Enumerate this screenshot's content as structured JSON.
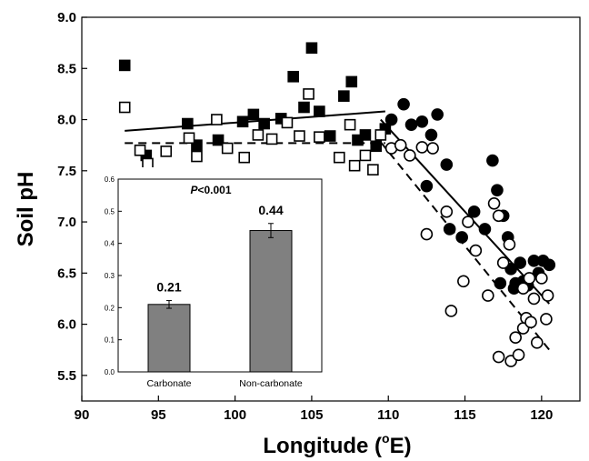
{
  "chart_data": [
    {
      "type": "scatter",
      "title": "",
      "xlabel_main": "Longitude (",
      "xlabel_sup": "o",
      "xlabel_end": "E)",
      "ylabel": "Soil pH",
      "xlim": [
        90,
        122.5
      ],
      "ylim": [
        5.25,
        9.0
      ],
      "xticks": [
        90,
        95,
        100,
        105,
        110,
        115,
        120
      ],
      "yticks": [
        5.5,
        6.0,
        6.5,
        7.0,
        7.5,
        8.0,
        8.5,
        9.0
      ],
      "grid": false,
      "legend": "none",
      "series": [
        {
          "marker": "filled-square",
          "points": [
            [
              92.8,
              8.53
            ],
            [
              94.2,
              7.65
            ],
            [
              96.9,
              7.96
            ],
            [
              97.5,
              7.75
            ],
            [
              98.9,
              7.8
            ],
            [
              100.5,
              7.98
            ],
            [
              101.2,
              8.05
            ],
            [
              101.9,
              7.96
            ],
            [
              103.0,
              8.01
            ],
            [
              103.8,
              8.42
            ],
            [
              104.5,
              8.12
            ],
            [
              105.0,
              8.7
            ],
            [
              105.5,
              8.08
            ],
            [
              106.2,
              7.84
            ],
            [
              107.1,
              8.23
            ],
            [
              107.6,
              8.37
            ],
            [
              108.0,
              7.8
            ],
            [
              108.5,
              7.85
            ],
            [
              109.2,
              7.74
            ],
            [
              109.8,
              7.91
            ]
          ]
        },
        {
          "marker": "open-square",
          "points": [
            [
              92.8,
              8.12
            ],
            [
              93.8,
              7.7
            ],
            [
              94.3,
              7.57
            ],
            [
              95.5,
              7.69
            ],
            [
              97.0,
              7.82
            ],
            [
              97.5,
              7.64
            ],
            [
              98.8,
              8.0
            ],
            [
              99.5,
              7.72
            ],
            [
              100.6,
              7.63
            ],
            [
              101.5,
              7.85
            ],
            [
              102.4,
              7.81
            ],
            [
              103.4,
              7.97
            ],
            [
              104.2,
              7.84
            ],
            [
              104.8,
              8.25
            ],
            [
              105.5,
              7.83
            ],
            [
              106.8,
              7.63
            ],
            [
              107.5,
              7.95
            ],
            [
              107.8,
              7.55
            ],
            [
              108.5,
              7.65
            ],
            [
              109.0,
              7.51
            ],
            [
              109.5,
              7.85
            ]
          ]
        },
        {
          "marker": "filled-circle",
          "points": [
            [
              110.2,
              8.0
            ],
            [
              111.0,
              8.15
            ],
            [
              111.5,
              7.95
            ],
            [
              112.2,
              7.98
            ],
            [
              112.8,
              7.85
            ],
            [
              113.2,
              8.05
            ],
            [
              113.8,
              7.56
            ],
            [
              112.5,
              7.35
            ],
            [
              114.0,
              6.93
            ],
            [
              114.8,
              6.85
            ],
            [
              115.6,
              7.1
            ],
            [
              116.3,
              6.93
            ],
            [
              116.8,
              7.6
            ],
            [
              117.1,
              7.31
            ],
            [
              117.5,
              7.06
            ],
            [
              117.8,
              6.85
            ],
            [
              118.0,
              6.54
            ],
            [
              118.3,
              6.4
            ],
            [
              118.6,
              6.6
            ],
            [
              118.8,
              6.42
            ],
            [
              119.1,
              6.38
            ],
            [
              119.5,
              6.62
            ],
            [
              119.8,
              6.5
            ],
            [
              120.1,
              6.62
            ],
            [
              120.5,
              6.58
            ],
            [
              117.3,
              6.4
            ],
            [
              118.2,
              6.35
            ]
          ]
        },
        {
          "marker": "open-circle",
          "points": [
            [
              110.2,
              7.72
            ],
            [
              110.8,
              7.75
            ],
            [
              111.4,
              7.65
            ],
            [
              112.2,
              7.73
            ],
            [
              112.5,
              6.88
            ],
            [
              112.9,
              7.72
            ],
            [
              113.8,
              7.1
            ],
            [
              114.1,
              6.13
            ],
            [
              114.9,
              6.42
            ],
            [
              115.2,
              7.0
            ],
            [
              115.7,
              6.72
            ],
            [
              116.5,
              6.28
            ],
            [
              116.9,
              7.18
            ],
            [
              117.2,
              7.06
            ],
            [
              117.5,
              6.6
            ],
            [
              117.2,
              5.68
            ],
            [
              117.9,
              6.78
            ],
            [
              118.0,
              5.64
            ],
            [
              118.3,
              5.87
            ],
            [
              118.5,
              5.7
            ],
            [
              118.8,
              5.96
            ],
            [
              119.0,
              6.06
            ],
            [
              119.2,
              6.45
            ],
            [
              119.5,
              6.25
            ],
            [
              119.7,
              5.82
            ],
            [
              120.0,
              6.45
            ],
            [
              120.3,
              6.05
            ],
            [
              120.4,
              6.28
            ],
            [
              118.8,
              6.35
            ],
            [
              119.3,
              6.02
            ]
          ]
        }
      ],
      "trend_lines": [
        {
          "style": "solid",
          "x": [
            92.8,
            109.8
          ],
          "y": [
            7.89,
            8.08
          ]
        },
        {
          "style": "dashed",
          "x": [
            92.8,
            109.8
          ],
          "y": [
            7.77,
            7.77
          ]
        },
        {
          "style": "solid",
          "x": [
            109.5,
            120.5
          ],
          "y": [
            8.0,
            6.2
          ]
        },
        {
          "style": "dashed",
          "x": [
            109.5,
            120.5
          ],
          "y": [
            7.78,
            5.75
          ]
        }
      ]
    },
    {
      "type": "bar",
      "categories": [
        "Carbonate",
        "Non-carbonate"
      ],
      "values": [
        0.21,
        0.44
      ],
      "errors": [
        0.012,
        0.022
      ],
      "data_labels": [
        "0.21",
        "0.44"
      ],
      "ylim": [
        0.0,
        0.6
      ],
      "yticks": [
        "0.0",
        "0.1",
        "0.2",
        "0.3",
        "0.4",
        "0.5",
        "0.6"
      ],
      "p_italic": "P",
      "p_rest": "<0.001",
      "bar_color": "#808080"
    }
  ]
}
